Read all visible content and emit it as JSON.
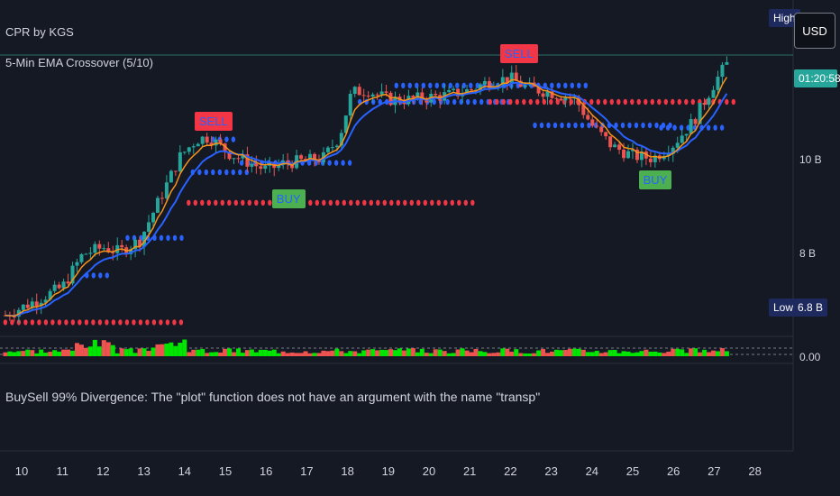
{
  "indicators": {
    "cpr_label": "CPR by KGS",
    "ema_label": "5-Min EMA Crossover (5/10)",
    "error_message": "BuySell 99% Divergence: The \"plot\" function does not have an argument with the name \"transp\""
  },
  "price_axis": {
    "currency": "USD",
    "high_tag": "High",
    "low_tag": "Low",
    "low_value": "6.8 B",
    "countdown": "01:20:58",
    "ticks": [
      "10 B",
      "8 B"
    ],
    "sub_value": "0.00"
  },
  "colors": {
    "background": "#151924",
    "up": "#26a69a",
    "down": "#ef5350",
    "ema_fast": "#f7931a",
    "ema_slow": "#2962ff",
    "pivot_red": "#f23645",
    "pivot_blue": "#2962ff",
    "buy": "#4caf50",
    "sell": "#f23645"
  },
  "chart_data": {
    "type": "candlestick",
    "x_ticks": [
      "10",
      "11",
      "12",
      "13",
      "14",
      "15",
      "16",
      "17",
      "18",
      "19",
      "20",
      "21",
      "22",
      "23",
      "24",
      "25",
      "26",
      "27",
      "28"
    ],
    "y_ticks": [
      {
        "label": "10 B",
        "value": 10
      },
      {
        "label": "8 B",
        "value": 8
      }
    ],
    "ylim": [
      6.2,
      12.6
    ],
    "close_path": [
      {
        "day": 9.6,
        "value": 6.7
      },
      {
        "day": 10.2,
        "value": 6.95
      },
      {
        "day": 11.0,
        "value": 7.3
      },
      {
        "day": 11.5,
        "value": 8.0
      },
      {
        "day": 12.0,
        "value": 8.15
      },
      {
        "day": 12.4,
        "value": 8.05
      },
      {
        "day": 12.9,
        "value": 8.3
      },
      {
        "day": 13.4,
        "value": 9.2
      },
      {
        "day": 13.9,
        "value": 10.1
      },
      {
        "day": 14.3,
        "value": 10.45
      },
      {
        "day": 14.6,
        "value": 10.5
      },
      {
        "day": 15.1,
        "value": 10.15
      },
      {
        "day": 15.6,
        "value": 9.95
      },
      {
        "day": 16.0,
        "value": 9.8
      },
      {
        "day": 16.5,
        "value": 9.95
      },
      {
        "day": 17.0,
        "value": 10.0
      },
      {
        "day": 17.4,
        "value": 10.05
      },
      {
        "day": 17.8,
        "value": 10.5
      },
      {
        "day": 18.1,
        "value": 11.45
      },
      {
        "day": 18.5,
        "value": 11.5
      },
      {
        "day": 19.0,
        "value": 11.3
      },
      {
        "day": 19.5,
        "value": 11.3
      },
      {
        "day": 20.0,
        "value": 11.35
      },
      {
        "day": 20.5,
        "value": 11.4
      },
      {
        "day": 21.0,
        "value": 11.5
      },
      {
        "day": 21.5,
        "value": 11.7
      },
      {
        "day": 22.0,
        "value": 11.75
      },
      {
        "day": 22.4,
        "value": 11.55
      },
      {
        "day": 23.0,
        "value": 11.45
      },
      {
        "day": 23.6,
        "value": 11.3
      },
      {
        "day": 24.0,
        "value": 10.75
      },
      {
        "day": 24.5,
        "value": 10.3
      },
      {
        "day": 25.0,
        "value": 10.1
      },
      {
        "day": 25.5,
        "value": 10.05
      },
      {
        "day": 26.0,
        "value": 10.35
      },
      {
        "day": 26.5,
        "value": 10.85
      },
      {
        "day": 27.0,
        "value": 11.65
      },
      {
        "day": 27.3,
        "value": 12.05
      }
    ],
    "pivot_levels": [
      {
        "color": "red",
        "from": 9.6,
        "to": 14.0,
        "value": 6.55
      },
      {
        "color": "blue",
        "from": 11.6,
        "to": 12.2,
        "value": 7.55
      },
      {
        "color": "blue",
        "from": 12.6,
        "to": 14.0,
        "value": 8.35
      },
      {
        "color": "blue",
        "from": 14.2,
        "to": 15.6,
        "value": 9.75
      },
      {
        "color": "blue",
        "from": 14.7,
        "to": 15.3,
        "value": 10.45
      },
      {
        "color": "red",
        "from": 14.1,
        "to": 21.2,
        "value": 9.1
      },
      {
        "color": "blue",
        "from": 15.4,
        "to": 18.1,
        "value": 9.95
      },
      {
        "color": "blue",
        "from": 18.3,
        "to": 22.0,
        "value": 11.25
      },
      {
        "color": "blue",
        "from": 19.2,
        "to": 24.0,
        "value": 11.6
      },
      {
        "color": "red",
        "from": 21.5,
        "to": 27.5,
        "value": 11.25
      },
      {
        "color": "blue",
        "from": 22.6,
        "to": 26.0,
        "value": 10.75
      },
      {
        "color": "blue",
        "from": 25.7,
        "to": 27.2,
        "value": 10.7
      }
    ],
    "signals": [
      {
        "label": "SELL",
        "day": 14.6,
        "value": 10.8,
        "type": "sell"
      },
      {
        "label": "BUY",
        "day": 16.5,
        "value": 9.15,
        "type": "buy"
      },
      {
        "label": "SELL",
        "day": 22.1,
        "value": 12.25,
        "type": "sell"
      },
      {
        "label": "BUY",
        "day": 25.5,
        "value": 9.55,
        "type": "buy"
      }
    ]
  }
}
